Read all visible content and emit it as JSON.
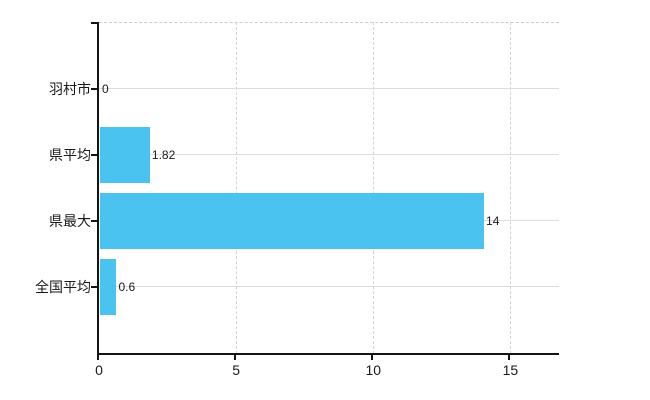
{
  "chart_data": {
    "type": "bar",
    "orientation": "horizontal",
    "title": "",
    "categories": [
      "羽村市",
      "県平均",
      "県最大",
      "全国平均"
    ],
    "values": [
      0,
      1.82,
      14,
      0.6
    ],
    "value_labels": [
      "0",
      "1.82",
      "14",
      "0.6"
    ],
    "x_ticks": [
      0,
      5,
      10,
      15
    ],
    "x_tick_labels": [
      "0",
      "5",
      "10",
      "15"
    ],
    "xlim": [
      0,
      16.77
    ],
    "grid": true,
    "legend": false,
    "bar_color": "#4ac3f0",
    "axis_color": "#141414",
    "h_gridline_color": "#d8e0d4",
    "v_gridline_color": "#d6d1d6",
    "top_border_color": "#cfcacf",
    "label_color": "#1a1a1a"
  }
}
